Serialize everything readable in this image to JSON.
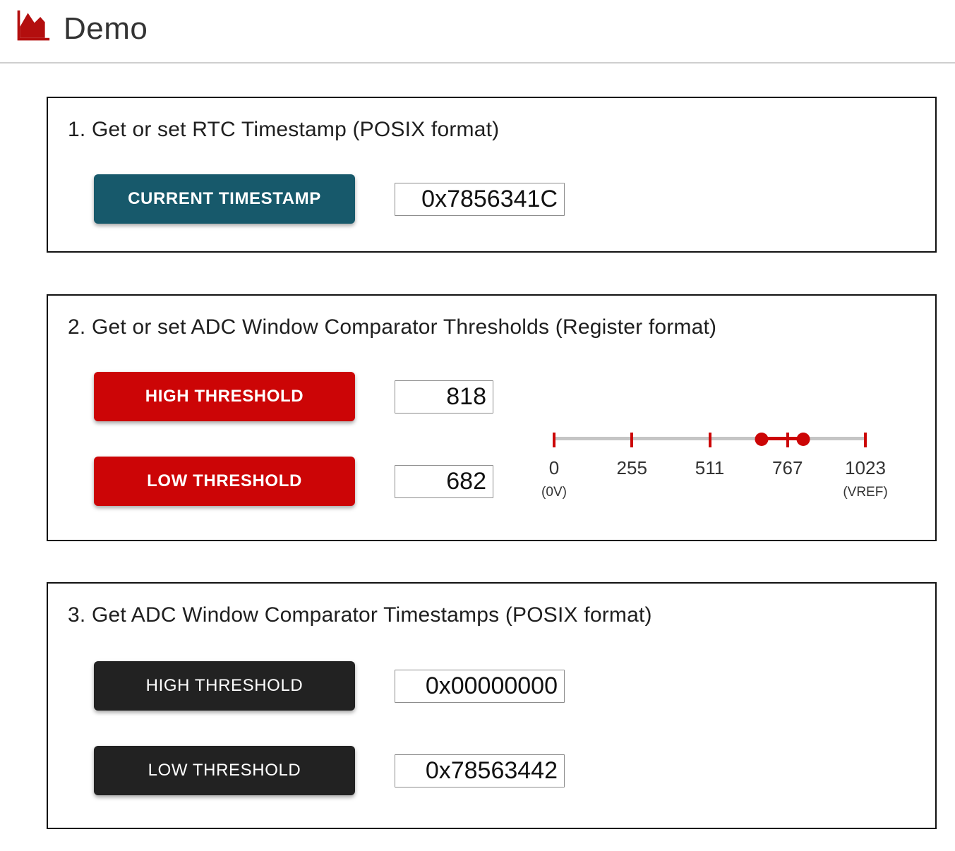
{
  "header": {
    "title": "Demo",
    "logo_icon": "area-chart-icon"
  },
  "colors": {
    "teal": "#17596b",
    "red": "#cc0506",
    "dark": "#222222",
    "logo-red": "#b30e0e",
    "track-gray": "#c5c5c5"
  },
  "sections": [
    {
      "heading": "1. Get or set RTC Timestamp (POSIX format)",
      "rows": [
        {
          "button": "CURRENT TIMESTAMP",
          "value": "0x7856341C",
          "style": "teal"
        }
      ]
    },
    {
      "heading": "2. Get or set ADC Window Comparator Thresholds (Register format)",
      "rows": [
        {
          "button": "HIGH THRESHOLD",
          "value": "818",
          "style": "red"
        },
        {
          "button": "LOW THRESHOLD",
          "value": "682",
          "style": "red"
        }
      ],
      "slider": {
        "min": 0,
        "max": 1023,
        "low_value": 682,
        "high_value": 818,
        "ticks": [
          "0",
          "255",
          "511",
          "767",
          "1023"
        ],
        "min_sublabel": "(0V)",
        "max_sublabel": "(VREF)"
      }
    },
    {
      "heading": "3. Get ADC Window Comparator Timestamps (POSIX format)",
      "rows": [
        {
          "button": "HIGH THRESHOLD",
          "value": "0x00000000",
          "style": "dark"
        },
        {
          "button": "LOW THRESHOLD",
          "value": "0x78563442",
          "style": "dark"
        }
      ]
    }
  ]
}
